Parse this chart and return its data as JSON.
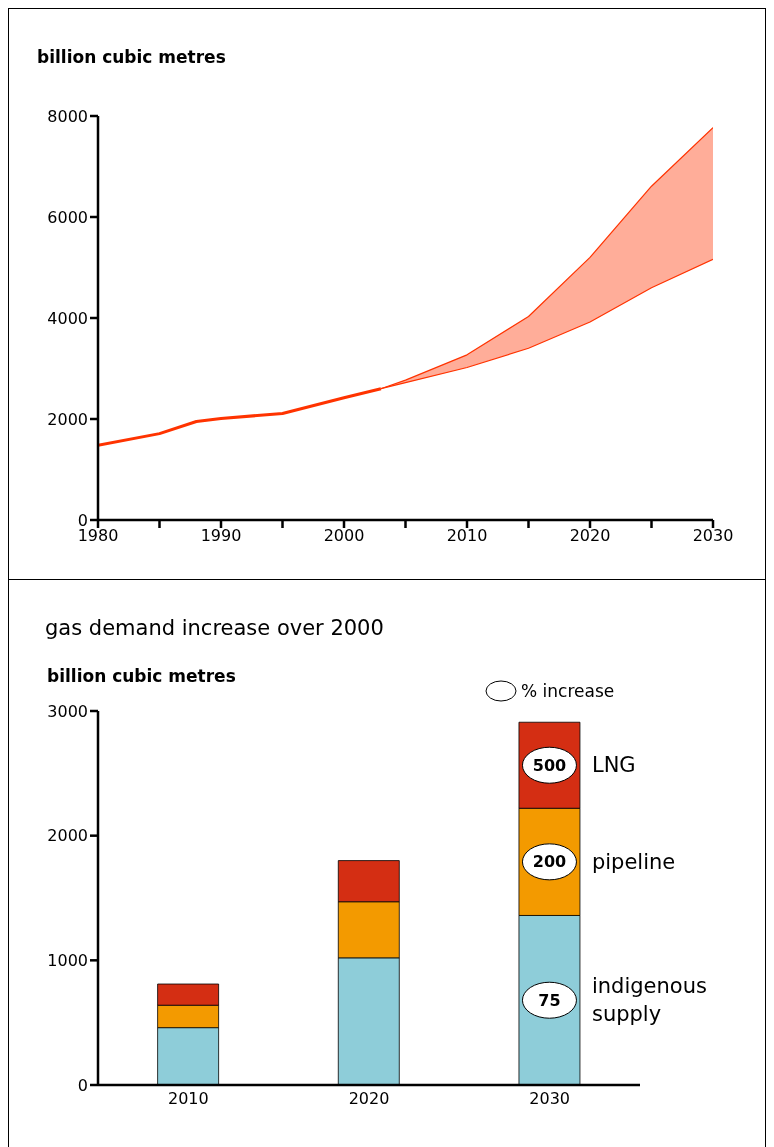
{
  "chart_data": [
    {
      "type": "line",
      "ylabel": "billion cubic metres",
      "xlim": [
        1980,
        2030
      ],
      "xticks": [
        1980,
        {
          "value": 1985,
          "label": null
        },
        1990,
        {
          "value": 1995,
          "label": null
        },
        2000,
        {
          "value": 2005,
          "label": null
        },
        2010,
        {
          "value": 2015,
          "label": null
        },
        2020,
        {
          "value": 2025,
          "label": null
        },
        2030
      ],
      "ylim": [
        0,
        8000
      ],
      "yticks": [
        0,
        2000,
        4000,
        6000,
        8000
      ],
      "series": [
        {
          "type": "line",
          "color": "#ff3300",
          "x": [
            1980,
            1985,
            1988,
            1990,
            1995,
            2000,
            2003
          ],
          "values": [
            1480,
            1710,
            1950,
            2010,
            2110,
            2420,
            2600
          ]
        },
        {
          "type": "line",
          "color": "#ff3300",
          "x": [
            2003,
            2005,
            2010,
            2015,
            2020,
            2025,
            2030
          ],
          "values": [
            2600,
            2770,
            3270,
            4030,
            5200,
            6610,
            7770
          ],
          "lower": [
            2600,
            2720,
            3020,
            3400,
            3920,
            4600,
            5160
          ],
          "upper": [
            2600,
            2770,
            3270,
            4030,
            5200,
            6610,
            7770
          ]
        },
        {
          "type": "line",
          "color": "#ff3300",
          "x": [
            2003,
            2005,
            2010,
            2015,
            2020,
            2025,
            2030
          ],
          "values": [
            2600,
            2720,
            3020,
            3400,
            3920,
            4600,
            5160
          ]
        }
      ]
    },
    {
      "type": "bar",
      "title": "gas demand increase over 2000",
      "ylabel": "billion cubic metres",
      "categories": [
        "2010",
        "2020",
        "2030"
      ],
      "stacked": true,
      "ylim": [
        0,
        3000
      ],
      "yticks": [
        0,
        1000,
        2000,
        3000
      ],
      "legend": "right",
      "annotations": [
        "% increase",
        "75",
        "200",
        "500"
      ],
      "series": [
        {
          "name": "indigenous supply",
          "color": "#8ecdd9",
          "values": [
            460,
            1020,
            1360
          ]
        },
        {
          "name": "pipeline",
          "color": "#f39a00",
          "values": [
            180,
            450,
            860
          ]
        },
        {
          "name": "LNG",
          "color": "#d42e13",
          "values": [
            170,
            330,
            690
          ]
        }
      ]
    }
  ]
}
